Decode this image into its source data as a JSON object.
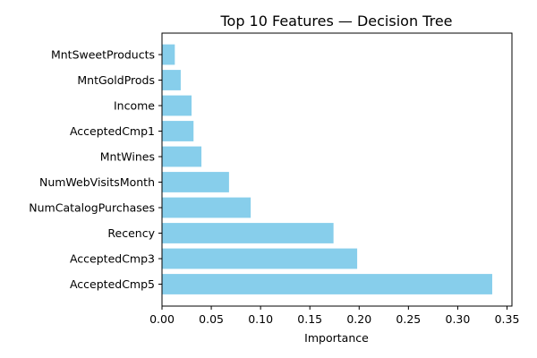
{
  "chart_data": {
    "type": "bar",
    "orientation": "horizontal",
    "title": "Top 10 Features — Decision Tree",
    "xlabel": "Importance",
    "ylabel": "",
    "categories": [
      "AcceptedCmp5",
      "AcceptedCmp3",
      "Recency",
      "NumCatalogPurchases",
      "NumWebVisitsMonth",
      "MntWines",
      "AcceptedCmp1",
      "Income",
      "MntGoldProds",
      "MntSweetProducts"
    ],
    "values": [
      0.335,
      0.198,
      0.174,
      0.09,
      0.068,
      0.04,
      0.032,
      0.03,
      0.019,
      0.013
    ],
    "xlim": [
      0,
      0.355
    ],
    "xticks": [
      "0.00",
      "0.05",
      "0.10",
      "0.15",
      "0.20",
      "0.25",
      "0.30",
      "0.35"
    ],
    "bar_color": "#87ceeb",
    "grid": false,
    "legend": "none"
  }
}
